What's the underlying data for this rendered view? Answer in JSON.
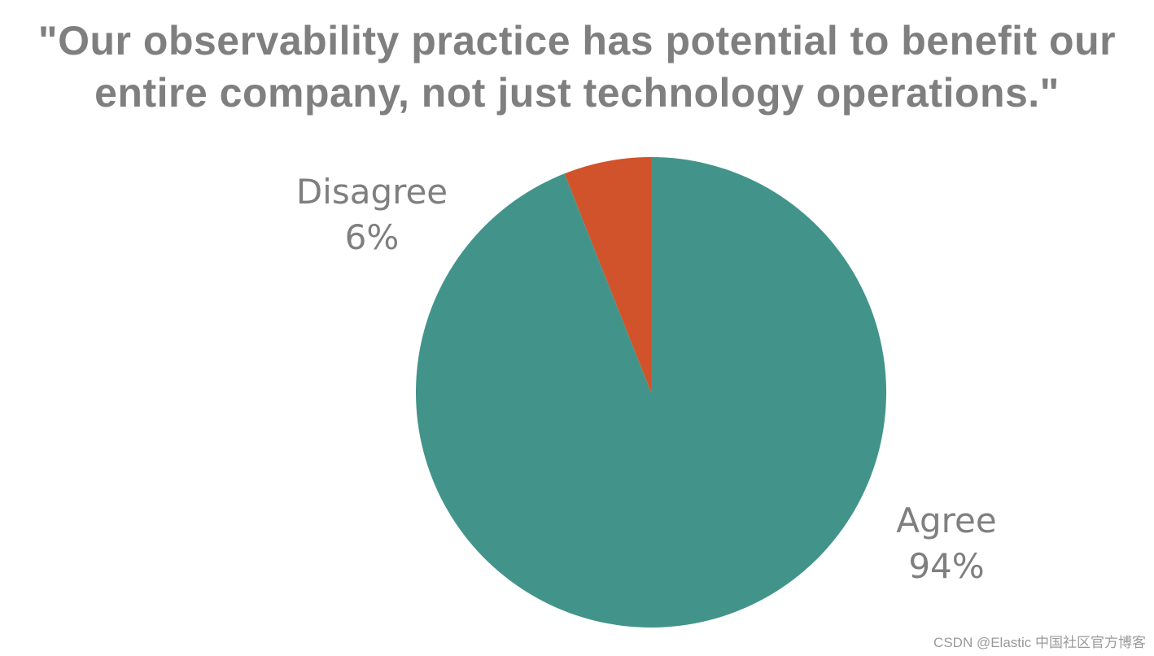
{
  "chart_data": {
    "type": "pie",
    "title": "\"Our observability practice has potential to benefit our entire company, not just technology operations.\"",
    "slices": [
      {
        "label": "Agree",
        "value": 94,
        "value_label": "94%",
        "color": "#42948a"
      },
      {
        "label": "Disagree",
        "value": 6,
        "value_label": "6%",
        "color": "#d0532b"
      }
    ],
    "start": "12 o'clock",
    "direction": "clockwise"
  },
  "watermark": "CSDN @Elastic 中国社区官方博客"
}
